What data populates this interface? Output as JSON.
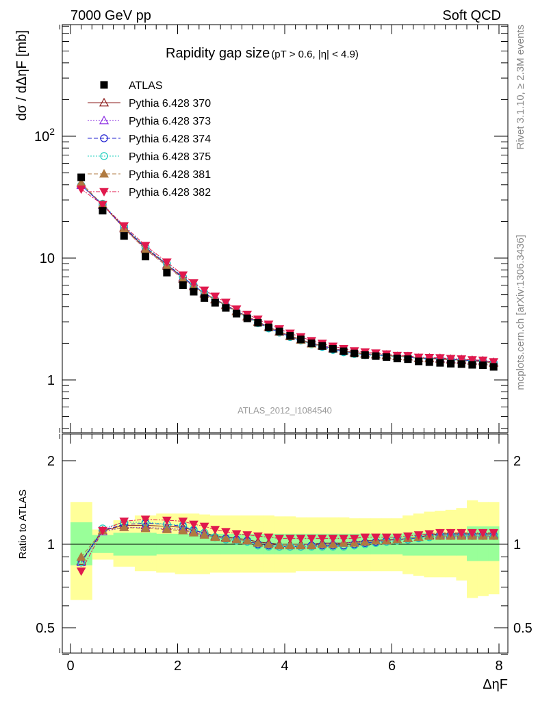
{
  "header": {
    "left": "7000 GeV pp",
    "right": "Soft QCD"
  },
  "top_panel": {
    "title_main": "Rapidity gap size",
    "title_cut": "(pT > 0.6, |η| < 4.9)",
    "ylabel": "dσ / dΔηF [mb]",
    "analysis_id": "ATLAS_2012_I1084540"
  },
  "bottom_panel": {
    "ylabel": "Ratio to ATLAS",
    "xlabel": "ΔηF"
  },
  "side": {
    "rivet": "Rivet 3.1.10, ≥ 2.3M events",
    "source": "mcplots.cern.ch [arXiv:1306.3436]"
  },
  "chart_data": {
    "type": "scatter",
    "x_range": [
      -0.2,
      8.0
    ],
    "main_ylim": [
      0.35,
      1000
    ],
    "main_yscale": "log",
    "ratio_ylim": [
      0.4,
      2.3
    ],
    "ratio_yscale": "log",
    "legend_position": "top-left",
    "main_yticks": [
      "1",
      "10",
      "10^2"
    ],
    "ratio_yticks": [
      "0.5",
      "1",
      "2"
    ],
    "xticks": [
      "0",
      "2",
      "4",
      "6",
      "8"
    ],
    "x": [
      0.2,
      0.6,
      1.0,
      1.4,
      1.8,
      2.1,
      2.3,
      2.5,
      2.7,
      2.9,
      3.1,
      3.3,
      3.5,
      3.7,
      3.9,
      4.1,
      4.3,
      4.5,
      4.7,
      4.9,
      5.1,
      5.3,
      5.5,
      5.7,
      5.9,
      6.1,
      6.3,
      6.5,
      6.7,
      6.9,
      7.1,
      7.3,
      7.5,
      7.7,
      7.9
    ],
    "atlas": {
      "name": "ATLAS",
      "values": [
        46,
        24.5,
        15.2,
        10.3,
        7.6,
        6.0,
        5.3,
        4.7,
        4.3,
        3.9,
        3.5,
        3.2,
        2.95,
        2.7,
        2.5,
        2.3,
        2.15,
        2.0,
        1.9,
        1.8,
        1.72,
        1.65,
        1.6,
        1.57,
        1.54,
        1.5,
        1.48,
        1.42,
        1.4,
        1.38,
        1.36,
        1.35,
        1.33,
        1.32,
        1.28
      ],
      "band_inner": [
        [
          0.84,
          1.2
        ],
        [
          0.93,
          1.08
        ],
        [
          0.91,
          1.1
        ],
        [
          0.91,
          1.1
        ],
        [
          0.92,
          1.09
        ],
        [
          0.92,
          1.09
        ],
        [
          0.92,
          1.09
        ],
        [
          0.92,
          1.09
        ],
        [
          0.92,
          1.09
        ],
        [
          0.92,
          1.09
        ],
        [
          0.92,
          1.09
        ],
        [
          0.92,
          1.09
        ],
        [
          0.92,
          1.09
        ],
        [
          0.92,
          1.09
        ],
        [
          0.92,
          1.09
        ],
        [
          0.92,
          1.09
        ],
        [
          0.92,
          1.09
        ],
        [
          0.92,
          1.09
        ],
        [
          0.92,
          1.09
        ],
        [
          0.92,
          1.09
        ],
        [
          0.92,
          1.09
        ],
        [
          0.92,
          1.09
        ],
        [
          0.92,
          1.09
        ],
        [
          0.92,
          1.09
        ],
        [
          0.92,
          1.09
        ],
        [
          0.92,
          1.09
        ],
        [
          0.91,
          1.1
        ],
        [
          0.91,
          1.1
        ],
        [
          0.91,
          1.1
        ],
        [
          0.91,
          1.1
        ],
        [
          0.91,
          1.1
        ],
        [
          0.91,
          1.1
        ],
        [
          0.87,
          1.16
        ],
        [
          0.87,
          1.16
        ],
        [
          0.87,
          1.16
        ]
      ],
      "band_outer": [
        [
          0.63,
          1.42
        ],
        [
          0.88,
          1.13
        ],
        [
          0.83,
          1.22
        ],
        [
          0.8,
          1.27
        ],
        [
          0.79,
          1.29
        ],
        [
          0.78,
          1.29
        ],
        [
          0.78,
          1.29
        ],
        [
          0.78,
          1.28
        ],
        [
          0.79,
          1.27
        ],
        [
          0.79,
          1.27
        ],
        [
          0.79,
          1.27
        ],
        [
          0.79,
          1.27
        ],
        [
          0.79,
          1.27
        ],
        [
          0.79,
          1.27
        ],
        [
          0.79,
          1.26
        ],
        [
          0.79,
          1.26
        ],
        [
          0.8,
          1.25
        ],
        [
          0.8,
          1.25
        ],
        [
          0.8,
          1.25
        ],
        [
          0.8,
          1.25
        ],
        [
          0.8,
          1.25
        ],
        [
          0.8,
          1.24
        ],
        [
          0.8,
          1.24
        ],
        [
          0.8,
          1.24
        ],
        [
          0.8,
          1.24
        ],
        [
          0.8,
          1.24
        ],
        [
          0.78,
          1.27
        ],
        [
          0.77,
          1.29
        ],
        [
          0.76,
          1.31
        ],
        [
          0.76,
          1.32
        ],
        [
          0.76,
          1.33
        ],
        [
          0.74,
          1.35
        ],
        [
          0.64,
          1.44
        ],
        [
          0.65,
          1.42
        ],
        [
          0.66,
          1.42
        ]
      ]
    },
    "series": [
      {
        "name": "Pythia 6.428 370",
        "color": "#8b1a1a",
        "marker": "triangle-open",
        "dash": "",
        "ratio": [
          0.87,
          1.12,
          1.17,
          1.17,
          1.16,
          1.15,
          1.12,
          1.1,
          1.07,
          1.06,
          1.05,
          1.04,
          1.02,
          1.01,
          1.0,
          1.0,
          1.0,
          1.0,
          1.01,
          1.01,
          1.01,
          1.02,
          1.03,
          1.03,
          1.04,
          1.04,
          1.05,
          1.06,
          1.08,
          1.09,
          1.09,
          1.09,
          1.09,
          1.09,
          1.09
        ]
      },
      {
        "name": "Pythia 6.428 373",
        "color": "#8a2be2",
        "marker": "triangle-open",
        "dash": "2,2",
        "ratio": [
          0.86,
          1.11,
          1.15,
          1.15,
          1.14,
          1.13,
          1.11,
          1.09,
          1.06,
          1.05,
          1.04,
          1.03,
          1.01,
          1.0,
          0.99,
          0.99,
          0.99,
          1.0,
          1.0,
          1.01,
          1.01,
          1.02,
          1.02,
          1.03,
          1.03,
          1.04,
          1.05,
          1.06,
          1.07,
          1.08,
          1.08,
          1.08,
          1.08,
          1.08,
          1.08
        ]
      },
      {
        "name": "Pythia 6.428 374",
        "color": "#1f1fd0",
        "marker": "circle-open",
        "dash": "6,3",
        "ratio": [
          0.86,
          1.12,
          1.18,
          1.19,
          1.18,
          1.16,
          1.12,
          1.1,
          1.06,
          1.05,
          1.04,
          1.03,
          1.0,
          0.99,
          0.98,
          0.98,
          0.98,
          0.99,
          0.99,
          0.99,
          0.99,
          1.0,
          1.01,
          1.02,
          1.03,
          1.04,
          1.04,
          1.06,
          1.07,
          1.08,
          1.08,
          1.08,
          1.08,
          1.08,
          1.08
        ]
      },
      {
        "name": "Pythia 6.428 375",
        "color": "#1fcfbf",
        "marker": "circle-open",
        "dash": "2,2",
        "ratio": [
          0.86,
          1.14,
          1.2,
          1.2,
          1.18,
          1.17,
          1.13,
          1.1,
          1.06,
          1.04,
          1.03,
          1.02,
          0.99,
          0.98,
          0.98,
          0.98,
          0.98,
          0.98,
          0.98,
          0.98,
          0.98,
          0.99,
          1.0,
          1.01,
          1.02,
          1.03,
          1.04,
          1.05,
          1.06,
          1.07,
          1.07,
          1.07,
          1.07,
          1.07,
          1.07
        ]
      },
      {
        "name": "Pythia 6.428 381",
        "color": "#b07a40",
        "marker": "triangle-filled",
        "dash": "6,3",
        "ratio": [
          0.9,
          1.12,
          1.15,
          1.14,
          1.13,
          1.12,
          1.1,
          1.08,
          1.06,
          1.05,
          1.04,
          1.03,
          1.01,
          1.0,
          0.99,
          0.99,
          0.99,
          0.99,
          1.0,
          1.0,
          1.01,
          1.01,
          1.02,
          1.03,
          1.03,
          1.04,
          1.05,
          1.06,
          1.07,
          1.07,
          1.07,
          1.07,
          1.07,
          1.07,
          1.07
        ]
      },
      {
        "name": "Pythia 6.428 382",
        "color": "#e0194d",
        "marker": "triangle-down-filled",
        "dash": "6,2,2,2",
        "ratio": [
          0.8,
          1.12,
          1.21,
          1.23,
          1.22,
          1.21,
          1.18,
          1.16,
          1.13,
          1.11,
          1.09,
          1.08,
          1.07,
          1.06,
          1.05,
          1.05,
          1.05,
          1.05,
          1.05,
          1.05,
          1.05,
          1.05,
          1.06,
          1.06,
          1.06,
          1.06,
          1.07,
          1.08,
          1.09,
          1.1,
          1.1,
          1.1,
          1.1,
          1.1,
          1.1
        ]
      }
    ]
  }
}
